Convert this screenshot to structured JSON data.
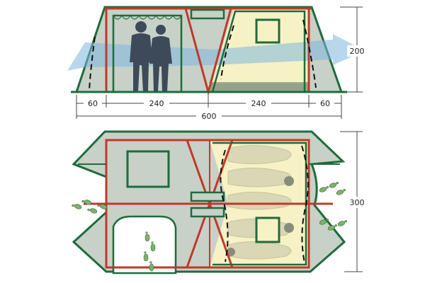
{
  "colors": {
    "green": "#1f6b3c",
    "red": "#c0392b",
    "canvas": "#c7d1c7",
    "bed": "#f6f2c6",
    "air": "#7eb6df",
    "people": "#3d4a59",
    "dim": "#444444"
  },
  "dimensions": {
    "side_60_left": "60",
    "side_240_left": "240",
    "side_240_right": "240",
    "side_60_right": "60",
    "total_length": "600",
    "height": "200",
    "width": "300"
  },
  "icons": {
    "people": "people-silhouette-icon",
    "footprints": "footprints-icon",
    "sleeping_bag": "sleeping-bag-icon",
    "airflow": "airflow-arrow-icon"
  }
}
